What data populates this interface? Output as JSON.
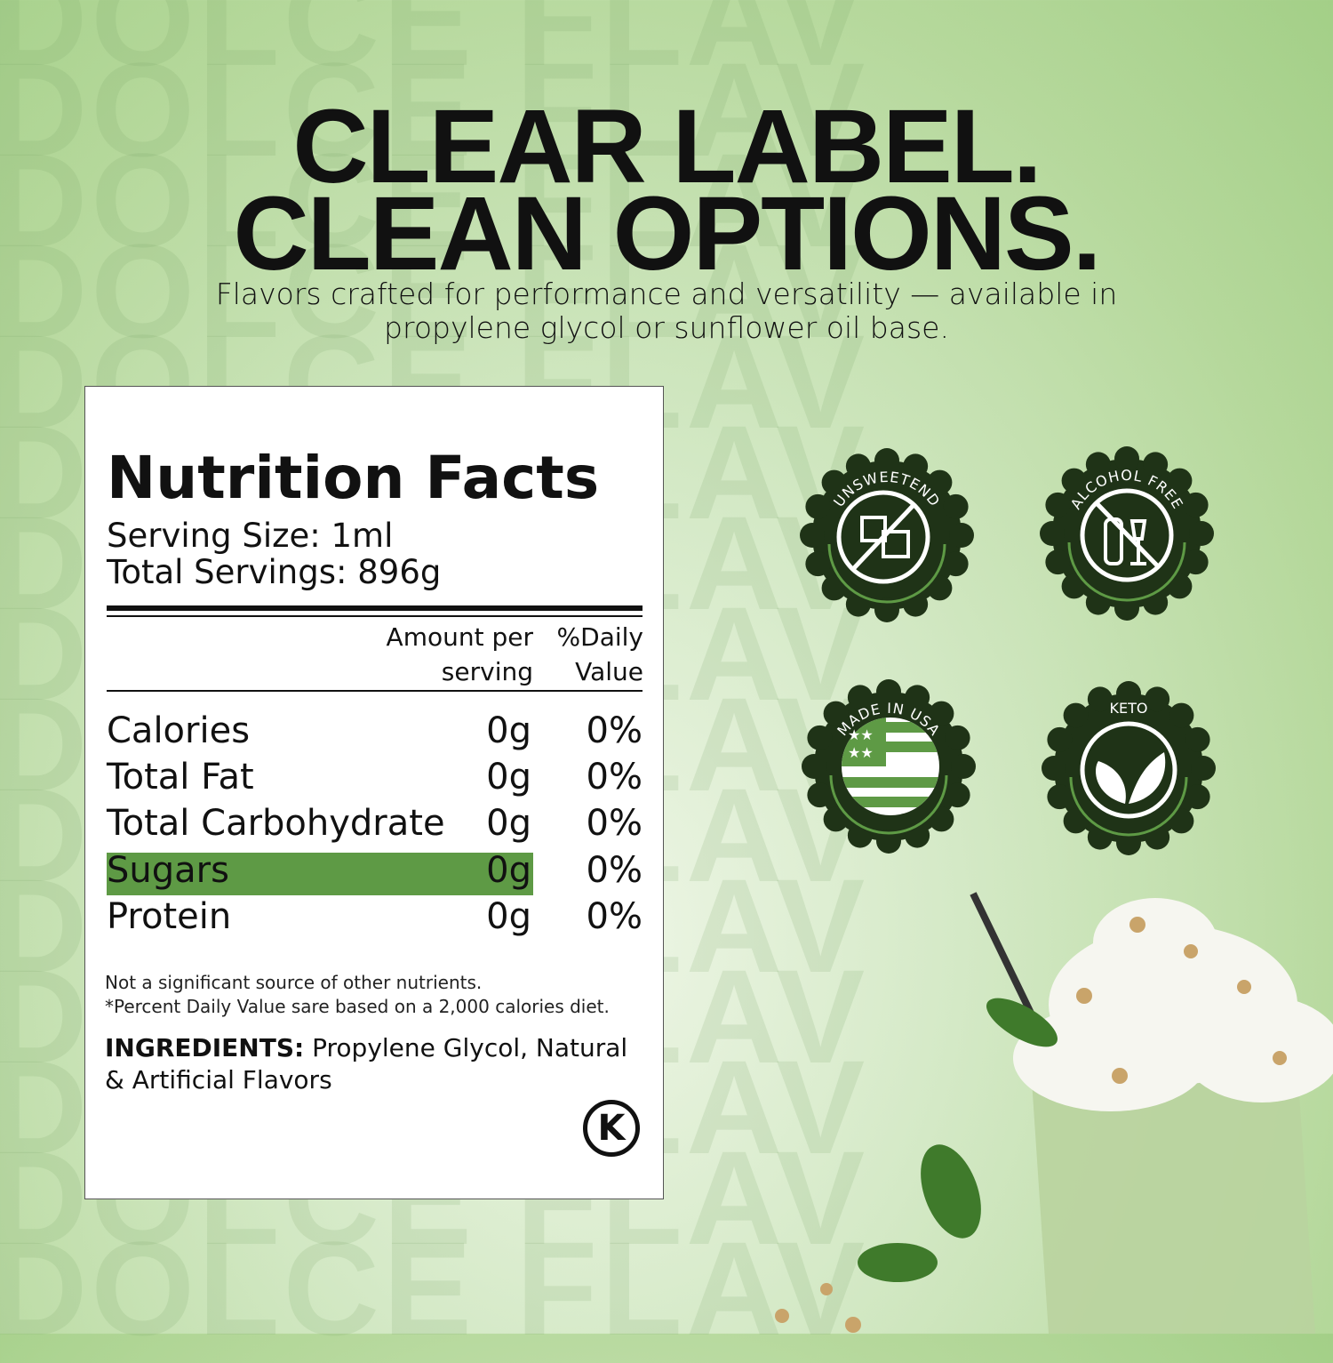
{
  "watermark": "DOLCE FLAV",
  "headline": {
    "line1": "CLEAR LABEL.",
    "line2": "CLEAN OPTIONS."
  },
  "subtitle": {
    "line1": "Flavors crafted for performance and versatility — available in",
    "line2": "propylene glycol or sunflower oil base."
  },
  "nutrition": {
    "title": "Nutrition Facts",
    "serving_size": "Serving Size: 1ml",
    "total_servings": "Total Servings: 896g",
    "col_amount": {
      "l1": "Amount per",
      "l2": "serving"
    },
    "col_daily": {
      "l1": "%Daily",
      "l2": "Value"
    },
    "rows": [
      {
        "name": "Calories",
        "amount": "0g",
        "daily": "0%"
      },
      {
        "name": "Total Fat",
        "amount": "0g",
        "daily": "0%"
      },
      {
        "name": "Total Carbohydrate",
        "amount": "0g",
        "daily": "0%"
      },
      {
        "name": "Sugars",
        "amount": "0g",
        "daily": "0%",
        "highlighted": true
      },
      {
        "name": "Protein",
        "amount": "0g",
        "daily": "0%"
      }
    ],
    "note1": "Not a significant source of other nutrients.",
    "note2": "*Percent Daily Value sare based on a 2,000 calories diet.",
    "ingredients_label": "INGREDIENTS:",
    "ingredients": "Propylene Glycol, Natural & Artificial Flavors",
    "kosher_mark": "K",
    "highlight_color": "#5e9a45"
  },
  "badges": [
    {
      "label": "UNSWEETEND",
      "icon": "no-sugar-cubes-icon"
    },
    {
      "label": "ALCOHOL FREE",
      "icon": "no-alcohol-icon"
    },
    {
      "label": "MADE IN USA",
      "icon": "usa-flag-icon"
    },
    {
      "label": "KETO",
      "icon": "leaves-icon"
    }
  ],
  "colors": {
    "badge": "#1f3317",
    "accent": "#5e9a45",
    "background": "#b5d89b"
  }
}
